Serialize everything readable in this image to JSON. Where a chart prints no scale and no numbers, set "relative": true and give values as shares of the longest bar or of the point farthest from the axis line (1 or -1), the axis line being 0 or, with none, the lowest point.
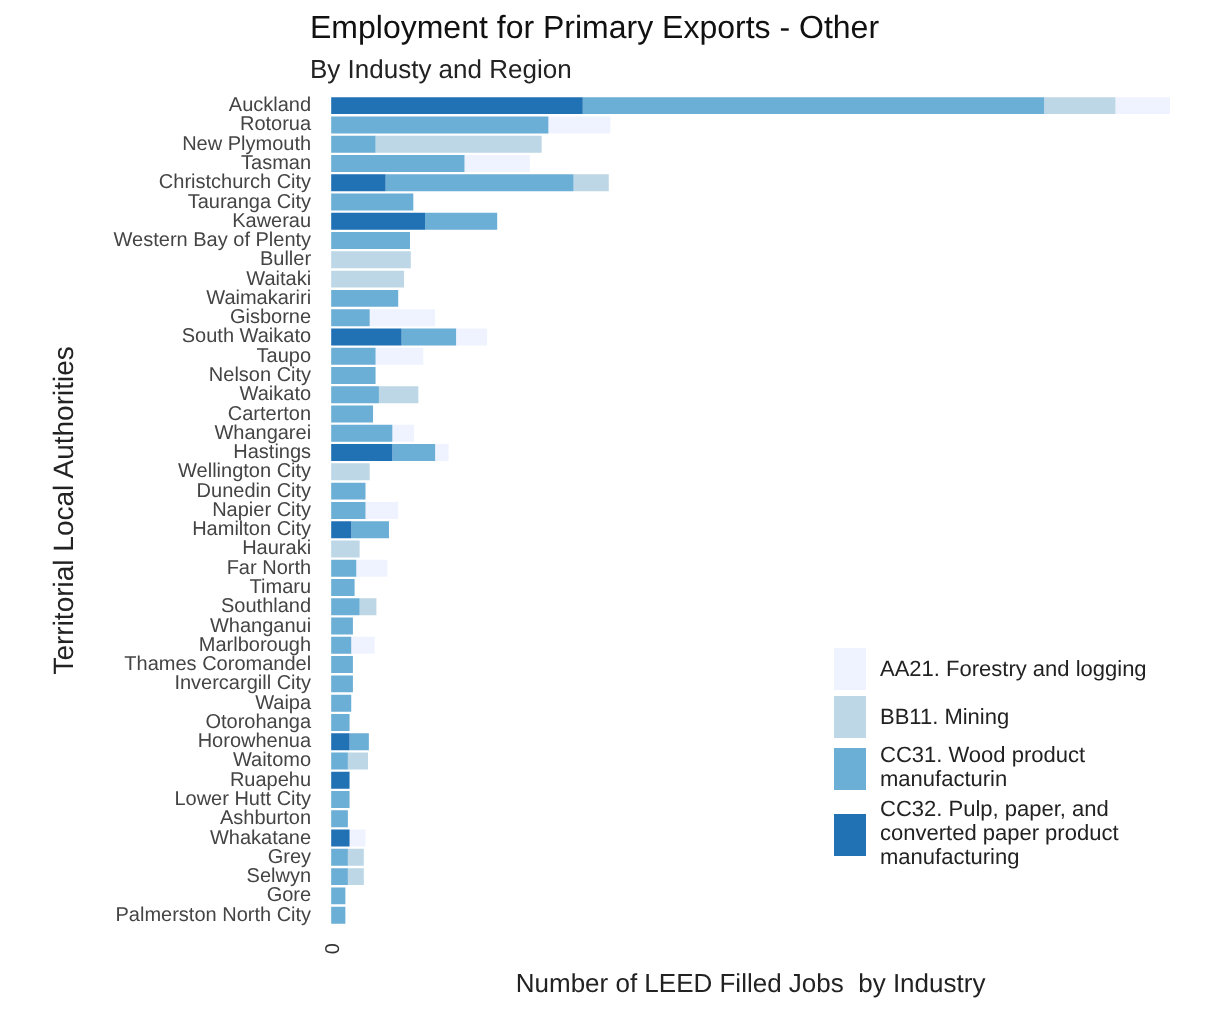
{
  "chart_data": {
    "type": "bar",
    "orientation": "horizontal",
    "stacked": true,
    "relative": true,
    "title": "Employment for Primary Exports - Other",
    "subtitle": "By Industy and Region",
    "xlabel": "Number of LEED Filled Jobs  by Industry",
    "ylabel": "Territorial Local Authorities",
    "legend": "bottom right",
    "grid": false,
    "annotations": [
      "0"
    ],
    "categories": [
      "Auckland",
      "Rotorua",
      "New Plymouth",
      "Tasman",
      "Christchurch City",
      "Tauranga City",
      "Kawerau",
      "Western Bay of Plenty",
      "Buller",
      "Waitaki",
      "Waimakariri",
      "Gisborne",
      "South Waikato",
      "Taupo",
      "Nelson City",
      "Waikato",
      "Carterton",
      "Whangarei",
      "Hastings",
      "Wellington City",
      "Dunedin City",
      "Napier City",
      "Hamilton City",
      "Hauraki",
      "Far North",
      "Timaru",
      "Southland",
      "Whanganui",
      "Marlborough",
      "Thames Coromandel",
      "Invercargill City",
      "Waipa",
      "Otorohanga",
      "Horowhenua",
      "Waitomo",
      "Ruapehu",
      "Lower Hutt City",
      "Ashburton",
      "Whakatane",
      "Grey",
      "Selwyn",
      "Gore",
      "Palmerston North City"
    ],
    "series": [
      {
        "name": "CC32. Pulp, paper, and converted paper product manufacturing",
        "color": "#2171b5",
        "values": [
          0.3,
          null,
          null,
          null,
          0.065,
          null,
          0.112,
          null,
          null,
          null,
          null,
          null,
          0.084,
          null,
          null,
          null,
          null,
          null,
          0.073,
          null,
          null,
          null,
          0.024,
          null,
          null,
          null,
          null,
          null,
          null,
          null,
          null,
          null,
          null,
          0.022,
          null,
          0.022,
          null,
          null,
          0.022,
          null,
          null,
          null,
          null
        ]
      },
      {
        "name": "CC31. Wood product manufacturin",
        "color": "#6baed6",
        "values": [
          0.55,
          0.259,
          0.053,
          0.159,
          0.224,
          0.098,
          0.086,
          0.094,
          null,
          null,
          0.08,
          0.046,
          0.065,
          0.053,
          0.053,
          0.057,
          0.05,
          0.073,
          0.051,
          null,
          0.041,
          0.041,
          0.045,
          null,
          0.03,
          0.028,
          0.034,
          0.026,
          0.024,
          0.026,
          0.026,
          0.024,
          0.022,
          0.023,
          0.02,
          null,
          0.022,
          0.02,
          null,
          0.02,
          0.02,
          0.017,
          0.017
        ]
      },
      {
        "name": "BB11. Mining",
        "color": "#bdd7e7",
        "values": [
          0.085,
          null,
          0.198,
          null,
          0.042,
          null,
          null,
          null,
          0.095,
          0.087,
          null,
          null,
          null,
          null,
          null,
          0.047,
          null,
          null,
          null,
          0.046,
          null,
          null,
          null,
          0.034,
          null,
          null,
          0.02,
          null,
          null,
          null,
          null,
          null,
          null,
          null,
          0.024,
          null,
          null,
          null,
          null,
          0.019,
          0.019,
          null,
          null
        ]
      },
      {
        "name": "AA21. Forestry and logging",
        "color": "#eff3ff",
        "values": [
          0.065,
          0.074,
          null,
          0.078,
          null,
          null,
          null,
          null,
          null,
          null,
          null,
          0.078,
          0.037,
          0.057,
          null,
          null,
          null,
          0.026,
          0.016,
          null,
          null,
          0.039,
          null,
          null,
          0.037,
          null,
          null,
          null,
          0.028,
          null,
          null,
          null,
          null,
          null,
          null,
          null,
          null,
          null,
          0.019,
          null,
          null,
          null,
          null
        ]
      }
    ]
  }
}
